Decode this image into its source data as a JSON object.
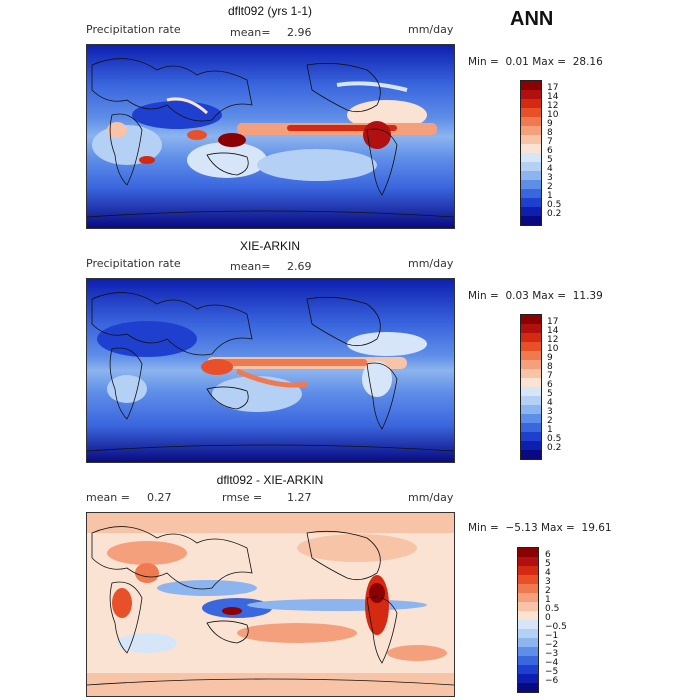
{
  "season": "ANN",
  "panels": [
    {
      "title": "dflt092 (yrs 1-1)",
      "left_label": "Precipitation rate",
      "mean_label": "mean=",
      "mean_value": "2.96",
      "units": "mm/day",
      "min_label": "Min =",
      "min_value": "0.01",
      "max_label": "Max =",
      "max_value": "28.16",
      "levels": [
        "17",
        "14",
        "12",
        "10",
        "9",
        "8",
        "7",
        "6",
        "5",
        "4",
        "3",
        "2",
        "1",
        "0.5",
        "0.2"
      ],
      "colors": [
        "#8b0000",
        "#b01010",
        "#d42a12",
        "#e8502a",
        "#f07a50",
        "#f5a07c",
        "#f8c4a8",
        "#fbe3d4",
        "#d6e6f8",
        "#b4d0f4",
        "#8cb4ee",
        "#5f8ee8",
        "#3a66de",
        "#1f3fcf",
        "#0e1fb0",
        "#0a0a80"
      ]
    },
    {
      "title": "XIE-ARKIN",
      "left_label": "Precipitation rate",
      "mean_label": "mean=",
      "mean_value": "2.69",
      "units": "mm/day",
      "min_label": "Min =",
      "min_value": "0.03",
      "max_label": "Max =",
      "max_value": "11.39",
      "levels": [
        "17",
        "14",
        "12",
        "10",
        "9",
        "8",
        "7",
        "6",
        "5",
        "4",
        "3",
        "2",
        "1",
        "0.5",
        "0.2"
      ],
      "colors": [
        "#8b0000",
        "#b01010",
        "#d42a12",
        "#e8502a",
        "#f07a50",
        "#f5a07c",
        "#f8c4a8",
        "#fbe3d4",
        "#d6e6f8",
        "#b4d0f4",
        "#8cb4ee",
        "#5f8ee8",
        "#3a66de",
        "#1f3fcf",
        "#0e1fb0",
        "#0a0a80"
      ]
    },
    {
      "title": "dflt092 - XIE-ARKIN",
      "left_label": "mean =",
      "left_value": "0.27",
      "rmse_label": "rmse =",
      "rmse_value": "1.27",
      "units": "mm/day",
      "min_label": "Min =",
      "min_value": "−5.13",
      "max_label": "Max =",
      "max_value": "19.61",
      "levels": [
        "6",
        "5",
        "4",
        "3",
        "2",
        "1",
        "0.5",
        "0",
        "−0.5",
        "−1",
        "−2",
        "−3",
        "−4",
        "−5",
        "−6"
      ],
      "colors": [
        "#8b0000",
        "#b01010",
        "#d42a12",
        "#e8502a",
        "#f07a50",
        "#f5a07c",
        "#f8c4a8",
        "#fbe3d4",
        "#d6e6f8",
        "#b4d0f4",
        "#8cb4ee",
        "#5f8ee8",
        "#3a66de",
        "#1f3fcf",
        "#0e1fb0",
        "#0a0a80"
      ]
    }
  ]
}
